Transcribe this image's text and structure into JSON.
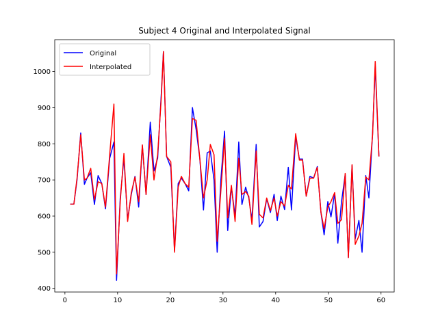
{
  "chart_data": {
    "type": "line",
    "title": "Subject 4 Original and Interpolated Signal",
    "xlim": [
      -1.93,
      62.5
    ],
    "ylim": [
      390,
      1088
    ],
    "xticks": [
      0,
      10,
      20,
      30,
      40,
      50,
      60
    ],
    "yticks": [
      400,
      500,
      600,
      700,
      800,
      900,
      1000
    ],
    "legend": "upper left",
    "series": [
      {
        "name": "Original",
        "color": "#0000ff",
        "x": [
          1.0,
          1.7,
          2.3,
          3.0,
          3.7,
          4.2,
          4.9,
          5.6,
          6.3,
          7.0,
          7.7,
          8.5,
          9.3,
          9.8,
          10.5,
          11.2,
          11.9,
          12.6,
          13.3,
          14.0,
          14.7,
          15.4,
          16.2,
          16.9,
          17.6,
          18.3,
          18.7,
          19.3,
          20.1,
          20.8,
          21.5,
          22.1,
          22.8,
          23.5,
          24.2,
          24.9,
          25.6,
          26.3,
          27.0,
          27.6,
          28.3,
          28.9,
          29.6,
          30.3,
          30.9,
          31.6,
          32.3,
          33.0,
          33.6,
          34.3,
          34.9,
          35.5,
          36.3,
          36.9,
          37.6,
          38.3,
          39.0,
          39.7,
          40.3,
          41.0,
          41.7,
          42.4,
          43.0,
          43.8,
          44.5,
          45.1,
          45.8,
          46.5,
          47.2,
          47.9,
          48.6,
          49.2,
          49.9,
          50.5,
          51.2,
          51.8,
          52.5,
          53.2,
          53.8,
          54.5,
          55.1,
          55.8,
          56.4,
          57.1,
          57.7,
          58.4,
          58.9,
          59.6
        ],
        "values": [
          633,
          633,
          700,
          830,
          688,
          705,
          720,
          632,
          712,
          690,
          620,
          760,
          805,
          422,
          650,
          760,
          590,
          660,
          710,
          625,
          795,
          660,
          860,
          725,
          760,
          940,
          1055,
          765,
          735,
          505,
          690,
          705,
          690,
          670,
          900,
          840,
          760,
          617,
          775,
          780,
          700,
          500,
          700,
          835,
          560,
          680,
          600,
          805,
          632,
          680,
          650,
          590,
          798,
          570,
          585,
          648,
          610,
          660,
          588,
          655,
          618,
          735,
          617,
          820,
          758,
          758,
          655,
          710,
          705,
          737,
          610,
          548,
          640,
          598,
          663,
          525,
          640,
          715,
          486,
          740,
          537,
          588,
          500,
          712,
          650,
          830,
          1015,
          765
        ]
      },
      {
        "name": "Interpolated",
        "color": "#ff0000",
        "x": [
          1.0,
          1.7,
          2.3,
          3.0,
          3.7,
          4.2,
          4.9,
          5.6,
          6.3,
          7.0,
          7.7,
          8.5,
          9.3,
          9.8,
          10.5,
          11.2,
          11.9,
          12.6,
          13.3,
          14.0,
          14.7,
          15.4,
          16.2,
          16.9,
          17.6,
          18.3,
          18.7,
          19.3,
          20.1,
          20.8,
          21.5,
          22.1,
          22.8,
          23.5,
          24.2,
          24.9,
          25.6,
          26.3,
          27.0,
          27.6,
          28.3,
          28.9,
          29.6,
          30.3,
          30.9,
          31.6,
          32.3,
          33.0,
          33.6,
          34.3,
          34.9,
          35.5,
          36.3,
          36.9,
          37.6,
          38.3,
          39.0,
          39.7,
          40.3,
          41.0,
          41.7,
          42.4,
          43.0,
          43.8,
          44.5,
          45.1,
          45.8,
          46.5,
          47.2,
          47.9,
          48.6,
          49.2,
          49.9,
          50.5,
          51.2,
          51.8,
          52.5,
          53.2,
          53.8,
          54.5,
          55.1,
          55.8,
          56.4,
          57.1,
          57.7,
          58.4,
          58.9,
          59.6
        ],
        "values": [
          633,
          633,
          705,
          825,
          700,
          705,
          732,
          645,
          695,
          690,
          625,
          770,
          910,
          440,
          640,
          773,
          585,
          665,
          708,
          640,
          797,
          660,
          825,
          700,
          770,
          930,
          1055,
          765,
          750,
          500,
          680,
          710,
          690,
          680,
          870,
          865,
          760,
          650,
          700,
          798,
          770,
          530,
          670,
          815,
          595,
          685,
          585,
          760,
          660,
          668,
          655,
          577,
          780,
          605,
          595,
          650,
          615,
          650,
          600,
          640,
          628,
          685,
          675,
          828,
          755,
          755,
          655,
          705,
          705,
          735,
          610,
          565,
          625,
          640,
          665,
          580,
          590,
          718,
          485,
          742,
          522,
          545,
          580,
          708,
          700,
          825,
          1028,
          765
        ]
      }
    ]
  }
}
